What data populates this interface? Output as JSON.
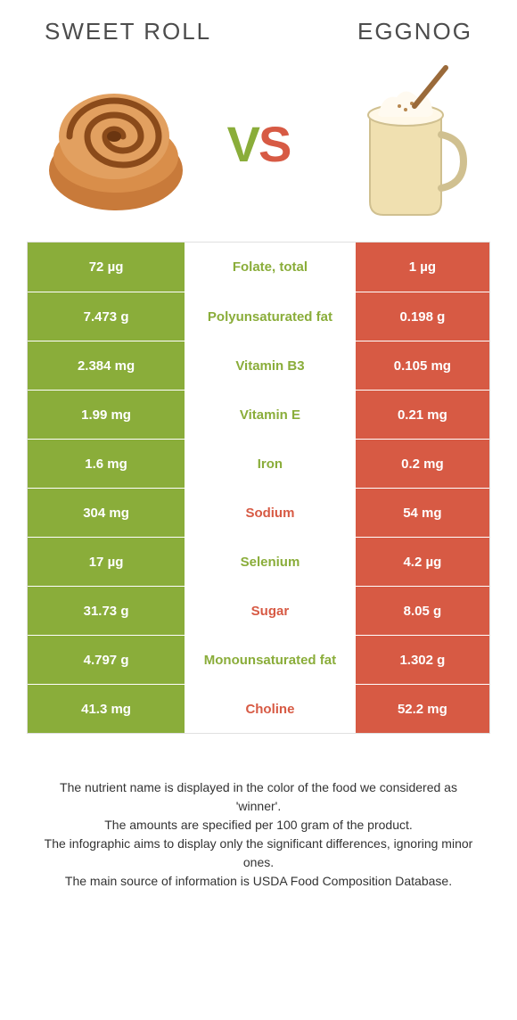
{
  "header": {
    "left_title": "SWEET ROLL",
    "right_title": "EGGNOG",
    "vs_v": "V",
    "vs_s": "S"
  },
  "colors": {
    "green": "#8aad3a",
    "orange": "#d75a44",
    "text_dark": "#4c4c4c",
    "white": "#ffffff",
    "border": "#e0e0e0"
  },
  "rows": [
    {
      "left": "72 µg",
      "label": "Folate, total",
      "right": "1 µg",
      "winner": "left"
    },
    {
      "left": "7.473 g",
      "label": "Polyunsaturated fat",
      "right": "0.198 g",
      "winner": "left"
    },
    {
      "left": "2.384 mg",
      "label": "Vitamin B3",
      "right": "0.105 mg",
      "winner": "left"
    },
    {
      "left": "1.99 mg",
      "label": "Vitamin E",
      "right": "0.21 mg",
      "winner": "left"
    },
    {
      "left": "1.6 mg",
      "label": "Iron",
      "right": "0.2 mg",
      "winner": "left"
    },
    {
      "left": "304 mg",
      "label": "Sodium",
      "right": "54 mg",
      "winner": "right"
    },
    {
      "left": "17 µg",
      "label": "Selenium",
      "right": "4.2 µg",
      "winner": "left"
    },
    {
      "left": "31.73 g",
      "label": "Sugar",
      "right": "8.05 g",
      "winner": "right"
    },
    {
      "left": "4.797 g",
      "label": "Monounsaturated fat",
      "right": "1.302 g",
      "winner": "left"
    },
    {
      "left": "41.3 mg",
      "label": "Choline",
      "right": "52.2 mg",
      "winner": "right"
    }
  ],
  "footer": {
    "line1": "The nutrient name is displayed in the color of the food we considered as 'winner'.",
    "line2": "The amounts are specified per 100 gram of the product.",
    "line3": "The infographic aims to display only the significant differences, ignoring minor ones.",
    "line4": "The main source of information is USDA Food Composition Database."
  }
}
